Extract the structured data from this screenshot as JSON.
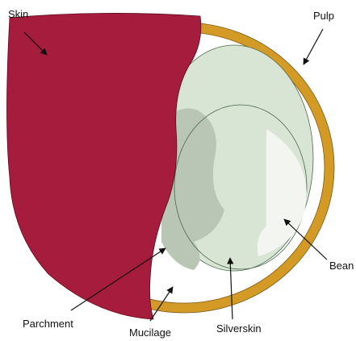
{
  "labels": {
    "skin": "Skin",
    "pulp": "Pulp",
    "bean": "Bean",
    "parchment": "Parchment",
    "mucilage": "Mucilage",
    "silverskin": "Silverskin"
  }
}
